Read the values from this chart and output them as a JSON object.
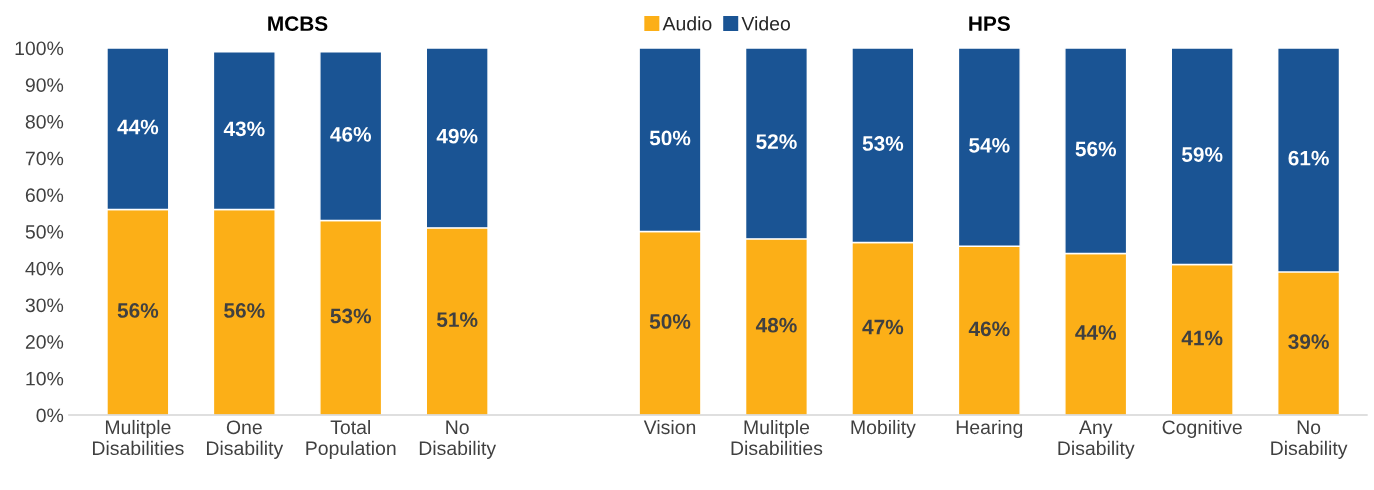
{
  "chart_data": {
    "type": "bar",
    "stacked": true,
    "categories": [
      "Mulitple\nDisabilities",
      "One\nDisability",
      "Total\nPopulation",
      "No\nDisability",
      null,
      "Vision",
      "Mulitple\nDisabilities",
      "Mobility",
      "Hearing",
      "Any\nDisability",
      "Cognitive",
      "No\nDisability"
    ],
    "series": [
      {
        "name": "Audio",
        "color": "#fcaf17",
        "values": [
          56,
          56,
          53,
          51,
          null,
          50,
          48,
          47,
          46,
          44,
          41,
          39
        ],
        "value_labels": [
          "56%",
          "56%",
          "53%",
          "51%",
          null,
          "50%",
          "48%",
          "47%",
          "46%",
          "44%",
          "41%",
          "39%"
        ]
      },
      {
        "name": "Video",
        "color": "#1a5494",
        "values": [
          44,
          43,
          46,
          49,
          null,
          50,
          52,
          53,
          54,
          56,
          59,
          61
        ],
        "value_labels": [
          "44%",
          "43%",
          "46%",
          "49%",
          null,
          "50%",
          "52%",
          "53%",
          "54%",
          "56%",
          "59%",
          "61%"
        ]
      }
    ],
    "ylim": [
      0,
      100
    ],
    "yticks": [
      {
        "value": 0,
        "label": "0%"
      },
      {
        "value": 10,
        "label": "10%"
      },
      {
        "value": 20,
        "label": "20%"
      },
      {
        "value": 30,
        "label": "30%"
      },
      {
        "value": 40,
        "label": "40%"
      },
      {
        "value": 50,
        "label": "50%"
      },
      {
        "value": 60,
        "label": "60%"
      },
      {
        "value": 70,
        "label": "70%"
      },
      {
        "value": 80,
        "label": "80%"
      },
      {
        "value": 90,
        "label": "90%"
      },
      {
        "value": 100,
        "label": "100%"
      }
    ],
    "annotations": [
      "MCBS",
      "HPS"
    ],
    "legend": "top",
    "grid": false
  }
}
